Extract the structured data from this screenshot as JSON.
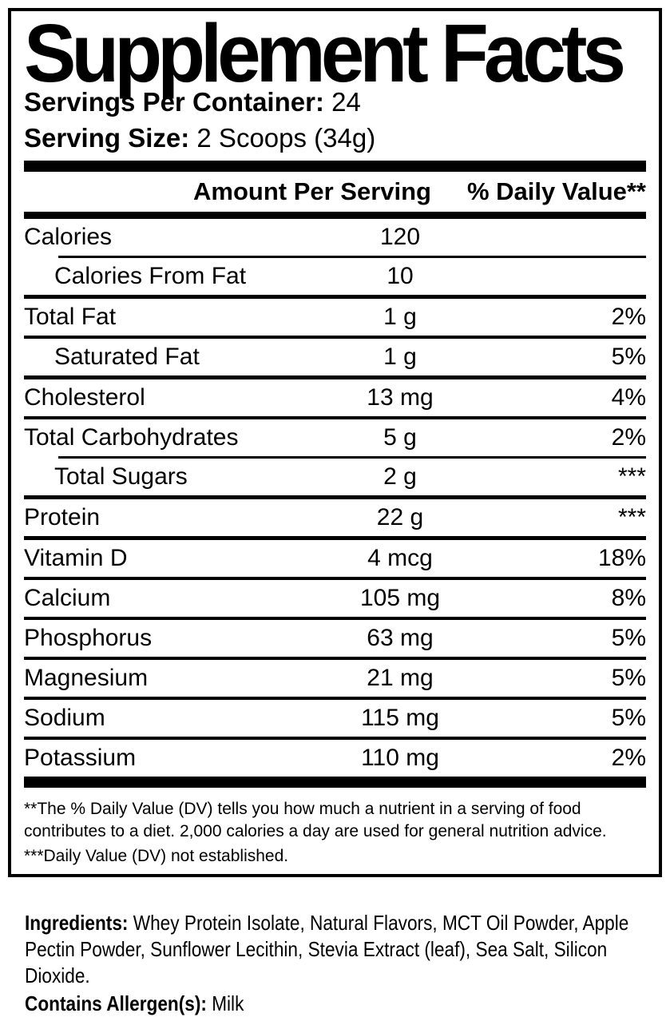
{
  "panel": {
    "title": "Supplement Facts",
    "servings_per_container": {
      "label": "Servings Per Container:",
      "value": "24"
    },
    "serving_size": {
      "label": "Serving Size:",
      "value": "2 Scoops (34g)"
    }
  },
  "table": {
    "amount_header": "Amount Per Serving",
    "dv_header": "% Daily Value**",
    "rows": [
      {
        "name": "Calories",
        "amount": "120",
        "dv": "",
        "indent": false,
        "sep": "thin-indented"
      },
      {
        "name": "Calories From Fat",
        "amount": "10",
        "dv": "",
        "indent": true,
        "sep": "thick"
      },
      {
        "name": "Total Fat",
        "amount": "1 g",
        "dv": "2%",
        "indent": false,
        "sep": "normal"
      },
      {
        "name": "Saturated Fat",
        "amount": "1 g",
        "dv": "5%",
        "indent": true,
        "sep": "thick"
      },
      {
        "name": "Cholesterol",
        "amount": "13 mg",
        "dv": "4%",
        "indent": false,
        "sep": "normal"
      },
      {
        "name": "Total Carbohydrates",
        "amount": "5 g",
        "dv": "2%",
        "indent": false,
        "sep": "thin-indented"
      },
      {
        "name": "Total Sugars",
        "amount": "2 g",
        "dv": "***",
        "indent": true,
        "sep": "thick"
      },
      {
        "name": "Protein",
        "amount": "22 g",
        "dv": "***",
        "indent": false,
        "sep": "thick"
      },
      {
        "name": "Vitamin D",
        "amount": "4 mcg",
        "dv": "18%",
        "indent": false,
        "sep": "normal"
      },
      {
        "name": "Calcium",
        "amount": "105 mg",
        "dv": "8%",
        "indent": false,
        "sep": "normal"
      },
      {
        "name": "Phosphorus",
        "amount": "63 mg",
        "dv": "5%",
        "indent": false,
        "sep": "normal"
      },
      {
        "name": "Magnesium",
        "amount": "21 mg",
        "dv": "5%",
        "indent": false,
        "sep": "normal"
      },
      {
        "name": "Sodium",
        "amount": "115 mg",
        "dv": "5%",
        "indent": false,
        "sep": "normal"
      },
      {
        "name": "Potassium",
        "amount": "110 mg",
        "dv": "2%",
        "indent": false,
        "sep": "none"
      }
    ]
  },
  "footnotes": {
    "daily_value": "**The % Daily Value (DV) tells you how much a nutrient in a serving of food contributes to a diet. 2,000 calories a day are used for general nutrition advice.",
    "not_established": "***Daily Value (DV) not established."
  },
  "ingredients": {
    "label": "Ingredients:",
    "text": "Whey Protein Isolate, Natural Flavors, MCT Oil Powder, Apple Pectin Powder, Sunflower Lecithin, Stevia Extract (leaf), Sea Salt, Silicon Dioxide."
  },
  "allergens": {
    "label": "Contains Allergen(s):",
    "value": "Milk"
  },
  "colors": {
    "foreground": "#000000",
    "background": "#ffffff"
  }
}
